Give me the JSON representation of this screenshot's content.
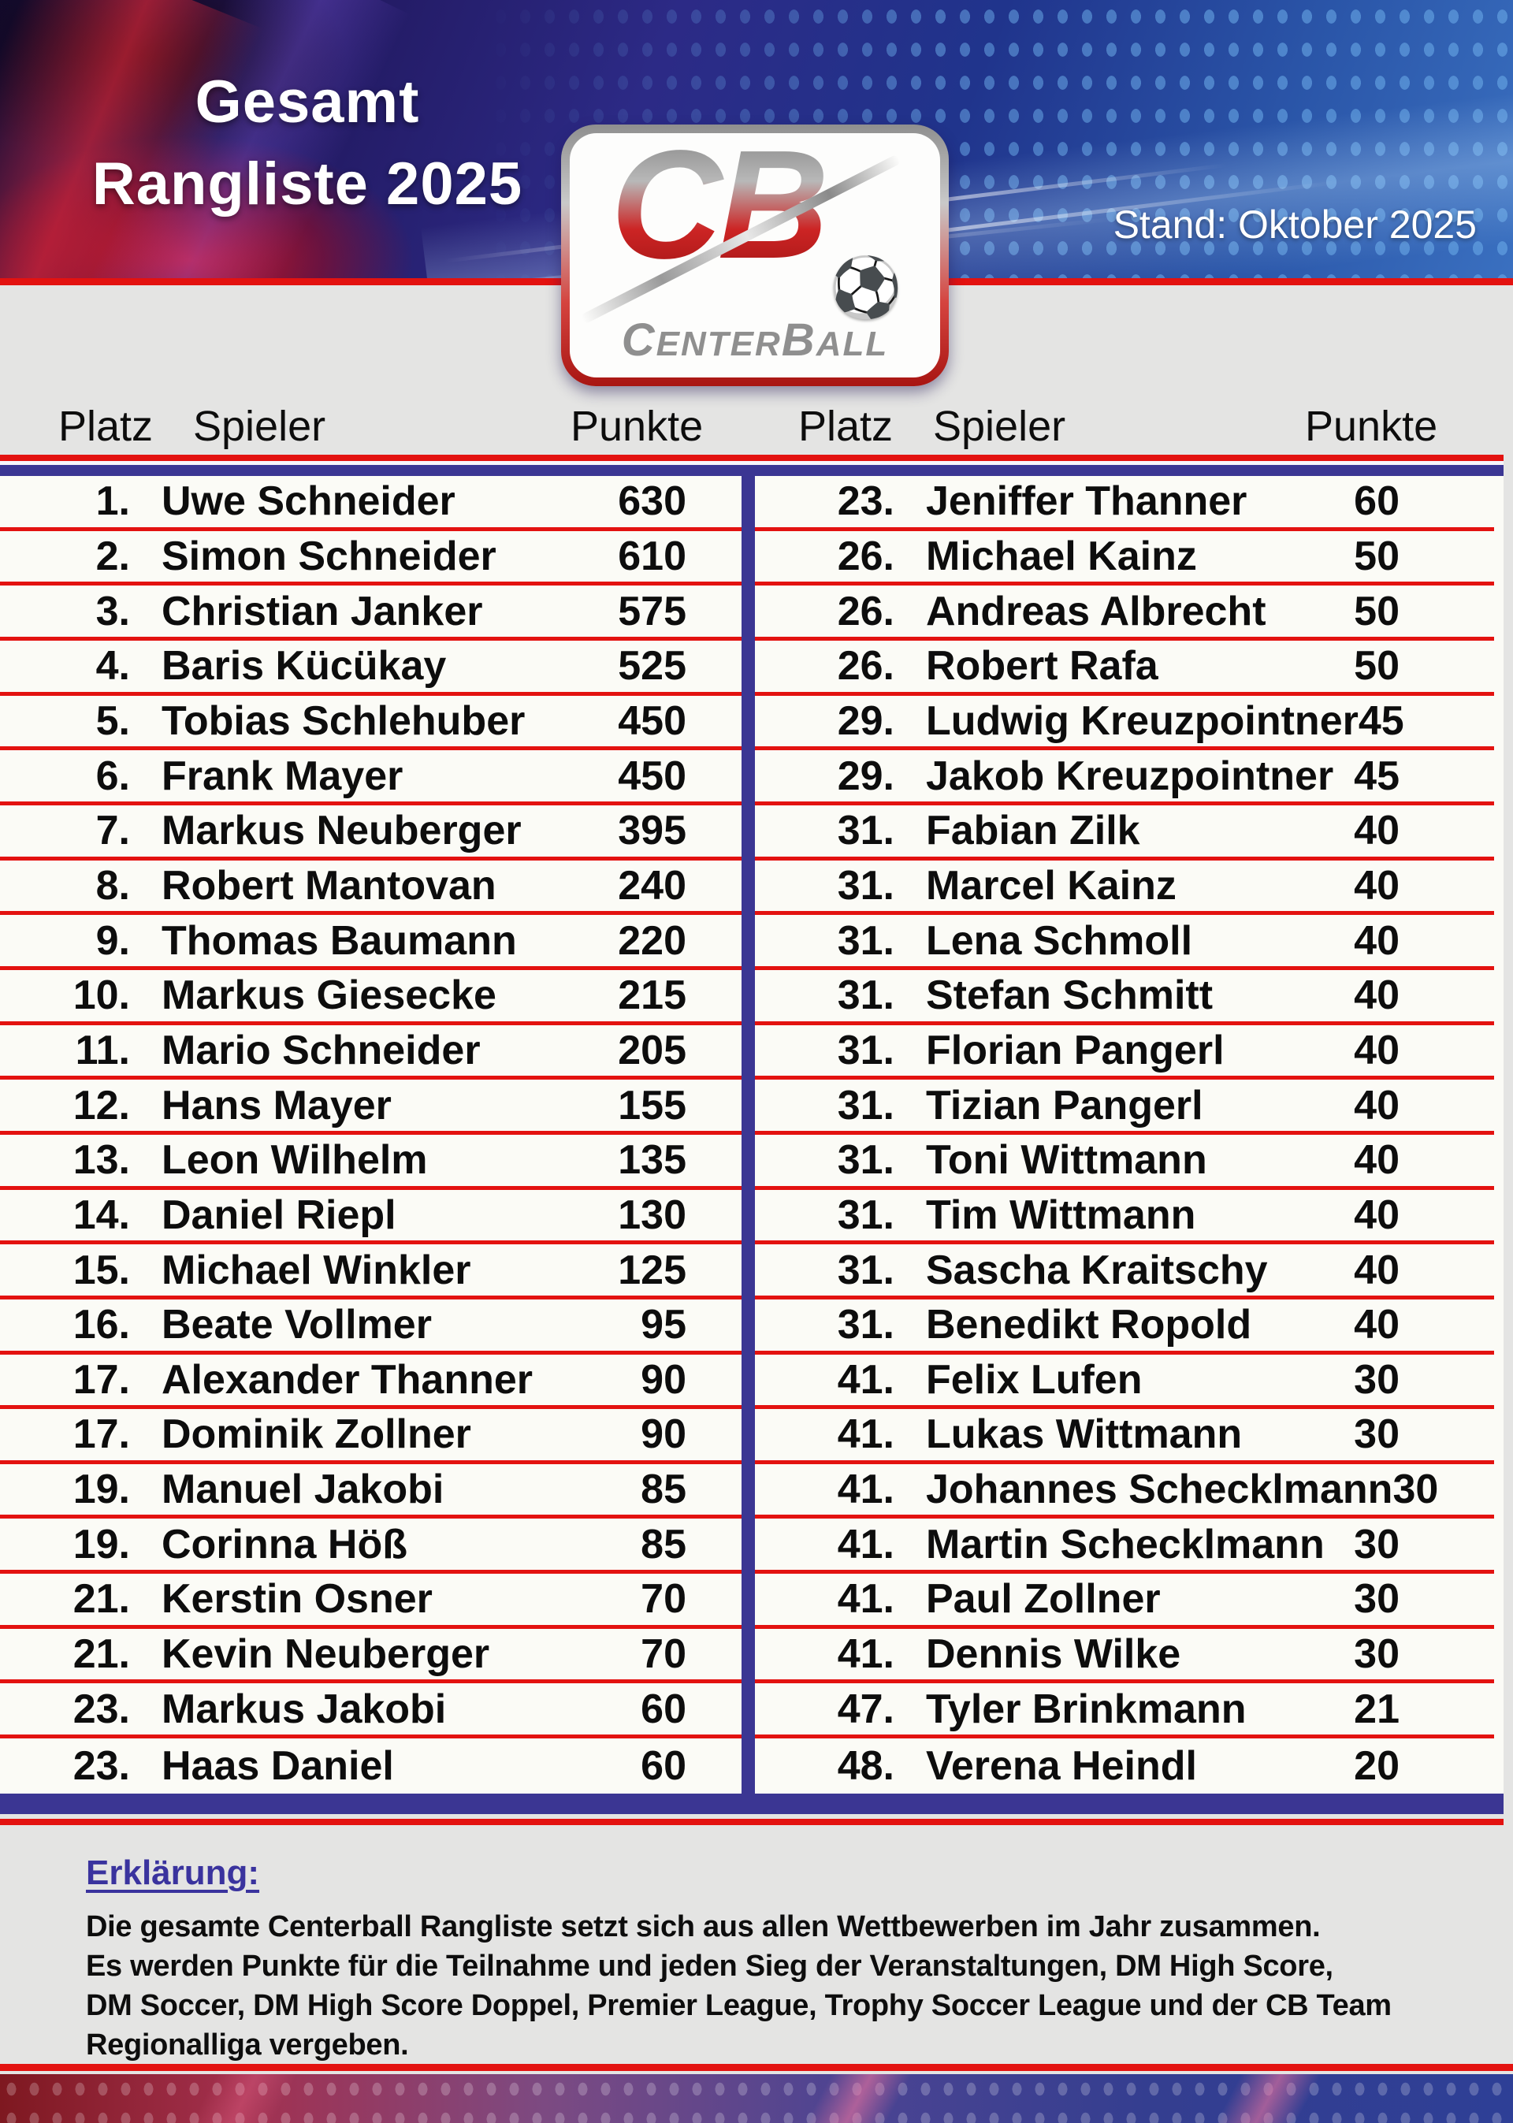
{
  "header": {
    "title_line1": "Gesamt",
    "title_line2": "Rangliste 2025",
    "stand_label": "Stand: Oktober 2025"
  },
  "logo": {
    "monogram": "CB",
    "word_part1": "Center",
    "word_part2": "Ball",
    "ball_icon": "⚽"
  },
  "columns": {
    "platz": "Platz",
    "spieler": "Spieler",
    "punkte": "Punkte"
  },
  "left_rows": [
    {
      "rank": "1.",
      "name": "Uwe Schneider",
      "points": "630"
    },
    {
      "rank": "2.",
      "name": "Simon Schneider",
      "points": "610"
    },
    {
      "rank": "3.",
      "name": "Christian Janker",
      "points": "575"
    },
    {
      "rank": "4.",
      "name": "Baris Kücükay",
      "points": "525"
    },
    {
      "rank": "5.",
      "name": "Tobias Schlehuber",
      "points": "450"
    },
    {
      "rank": "6.",
      "name": "Frank Mayer",
      "points": "450"
    },
    {
      "rank": "7.",
      "name": "Markus Neuberger",
      "points": "395"
    },
    {
      "rank": "8.",
      "name": "Robert Mantovan",
      "points": "240"
    },
    {
      "rank": "9.",
      "name": "Thomas Baumann",
      "points": "220"
    },
    {
      "rank": "10.",
      "name": "Markus Giesecke",
      "points": "215"
    },
    {
      "rank": "11.",
      "name": "Mario Schneider",
      "points": "205"
    },
    {
      "rank": "12.",
      "name": "Hans Mayer",
      "points": "155"
    },
    {
      "rank": "13.",
      "name": "Leon Wilhelm",
      "points": "135"
    },
    {
      "rank": "14.",
      "name": "Daniel Riepl",
      "points": "130"
    },
    {
      "rank": "15.",
      "name": "Michael Winkler",
      "points": "125"
    },
    {
      "rank": "16.",
      "name": "Beate Vollmer",
      "points": "95"
    },
    {
      "rank": "17.",
      "name": "Alexander Thanner",
      "points": "90"
    },
    {
      "rank": "17.",
      "name": "Dominik Zollner",
      "points": "90"
    },
    {
      "rank": "19.",
      "name": "Manuel Jakobi",
      "points": "85"
    },
    {
      "rank": "19.",
      "name": "Corinna Höß",
      "points": "85"
    },
    {
      "rank": "21.",
      "name": "Kerstin Osner",
      "points": "70"
    },
    {
      "rank": "21.",
      "name": "Kevin Neuberger",
      "points": "70"
    },
    {
      "rank": "23.",
      "name": "Markus Jakobi",
      "points": "60"
    },
    {
      "rank": "23.",
      "name": "Haas Daniel",
      "points": "60"
    }
  ],
  "right_rows": [
    {
      "rank": "23.",
      "name": "Jeniffer Thanner",
      "points": "60"
    },
    {
      "rank": "26.",
      "name": "Michael Kainz",
      "points": "50"
    },
    {
      "rank": "26.",
      "name": "Andreas Albrecht",
      "points": "50"
    },
    {
      "rank": "26.",
      "name": "Robert Rafa",
      "points": "50"
    },
    {
      "rank": "29.",
      "name": "Ludwig Kreuzpointner",
      "points": "45"
    },
    {
      "rank": "29.",
      "name": "Jakob Kreuzpointner",
      "points": "45"
    },
    {
      "rank": "31.",
      "name": "Fabian Zilk",
      "points": "40"
    },
    {
      "rank": "31.",
      "name": "Marcel Kainz",
      "points": "40"
    },
    {
      "rank": "31.",
      "name": "Lena Schmoll",
      "points": "40"
    },
    {
      "rank": "31.",
      "name": "Stefan Schmitt",
      "points": "40"
    },
    {
      "rank": "31.",
      "name": "Florian Pangerl",
      "points": "40"
    },
    {
      "rank": "31.",
      "name": "Tizian Pangerl",
      "points": "40"
    },
    {
      "rank": "31.",
      "name": "Toni Wittmann",
      "points": "40"
    },
    {
      "rank": "31.",
      "name": "Tim Wittmann",
      "points": "40"
    },
    {
      "rank": "31.",
      "name": "Sascha Kraitschy",
      "points": "40"
    },
    {
      "rank": "31.",
      "name": "Benedikt Ropold",
      "points": "40"
    },
    {
      "rank": "41.",
      "name": "Felix Lufen",
      "points": "30"
    },
    {
      "rank": "41.",
      "name": "Lukas Wittmann",
      "points": "30"
    },
    {
      "rank": "41.",
      "name": "Johannes Schecklmann",
      "points": "30"
    },
    {
      "rank": "41.",
      "name": "Martin Schecklmann",
      "points": "30"
    },
    {
      "rank": "41.",
      "name": "Paul Zollner",
      "points": "30"
    },
    {
      "rank": "41.",
      "name": "Dennis Wilke",
      "points": "30"
    },
    {
      "rank": "47.",
      "name": "Tyler Brinkmann",
      "points": "21"
    },
    {
      "rank": "48.",
      "name": "Verena Heindl",
      "points": "20"
    }
  ],
  "explanation": {
    "heading": "Erklärung:",
    "lines": [
      "Die gesamte Centerball Rangliste setzt sich aus allen Wettbewerben im Jahr zusammen.",
      "Es werden Punkte für die Teilnahme und jeden Sieg der Veranstaltungen, DM High Score,",
      "DM Soccer, DM High Score Doppel, Premier League, Trophy Soccer League und der CB Team",
      "Regionalliga vergeben."
    ]
  },
  "colors": {
    "accent_red": "#e31210",
    "accent_indigo": "#3b3693",
    "page_gray": "#e4e4e3"
  }
}
